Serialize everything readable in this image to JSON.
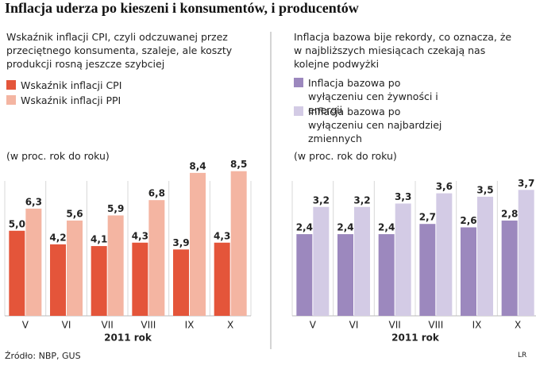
{
  "title": "Inflacja uderza po kieszeni i konsumentów, i producentów",
  "source": "Źródło: NBP, GUS",
  "credit": "LR",
  "chart_data": [
    {
      "type": "bar",
      "subtitle": "Wskaźnik inflacji CPI, czyli odczuwanej przez przeciętnego konsumenta, szaleje, ale koszty produkcji rosną jeszcze szybciej",
      "unit_note": "(w proc. rok do roku)",
      "x_label": "2011 rok",
      "categories": [
        "V",
        "VI",
        "VII",
        "VIII",
        "IX",
        "X"
      ],
      "ylim": [
        0,
        9
      ],
      "series": [
        {
          "name": "Wskaźnik inflacji CPI",
          "color": "#e4553a",
          "values": [
            5.0,
            4.2,
            4.1,
            4.3,
            3.9,
            4.3
          ],
          "value_labels": [
            "5,0",
            "4,2",
            "4,1",
            "4,3",
            "3,9",
            "4,3"
          ]
        },
        {
          "name": "Wskaźnik inflacji PPI",
          "color": "#f4b5a2",
          "values": [
            6.3,
            5.6,
            5.9,
            6.8,
            8.4,
            8.5
          ],
          "value_labels": [
            "6,3",
            "5,6",
            "5,9",
            "6,8",
            "8,4",
            "8,5"
          ]
        }
      ]
    },
    {
      "type": "bar",
      "subtitle": "Inflacja bazowa bije rekordy, co oznacza, że w najbliższych miesiącach czekają nas kolejne podwyżki",
      "unit_note": "(w proc. rok do roku)",
      "x_label": "2011 rok",
      "categories": [
        "V",
        "VI",
        "VII",
        "VIII",
        "IX",
        "X"
      ],
      "ylim": [
        0,
        4.5
      ],
      "series": [
        {
          "name": "Inflacja bazowa po wyłączeniu cen żywności i energii",
          "color": "#9c88be",
          "values": [
            2.4,
            2.4,
            2.4,
            2.7,
            2.6,
            2.8
          ],
          "value_labels": [
            "2,4",
            "2,4",
            "2,4",
            "2,7",
            "2,6",
            "2,8"
          ]
        },
        {
          "name": "Inflacja bazowa po wyłączeniu cen najbardziej zmiennych",
          "color": "#d3cbe5",
          "values": [
            3.2,
            3.2,
            3.3,
            3.6,
            3.5,
            3.7
          ],
          "value_labels": [
            "3,2",
            "3,2",
            "3,3",
            "3,6",
            "3,5",
            "3,7"
          ]
        }
      ]
    }
  ]
}
